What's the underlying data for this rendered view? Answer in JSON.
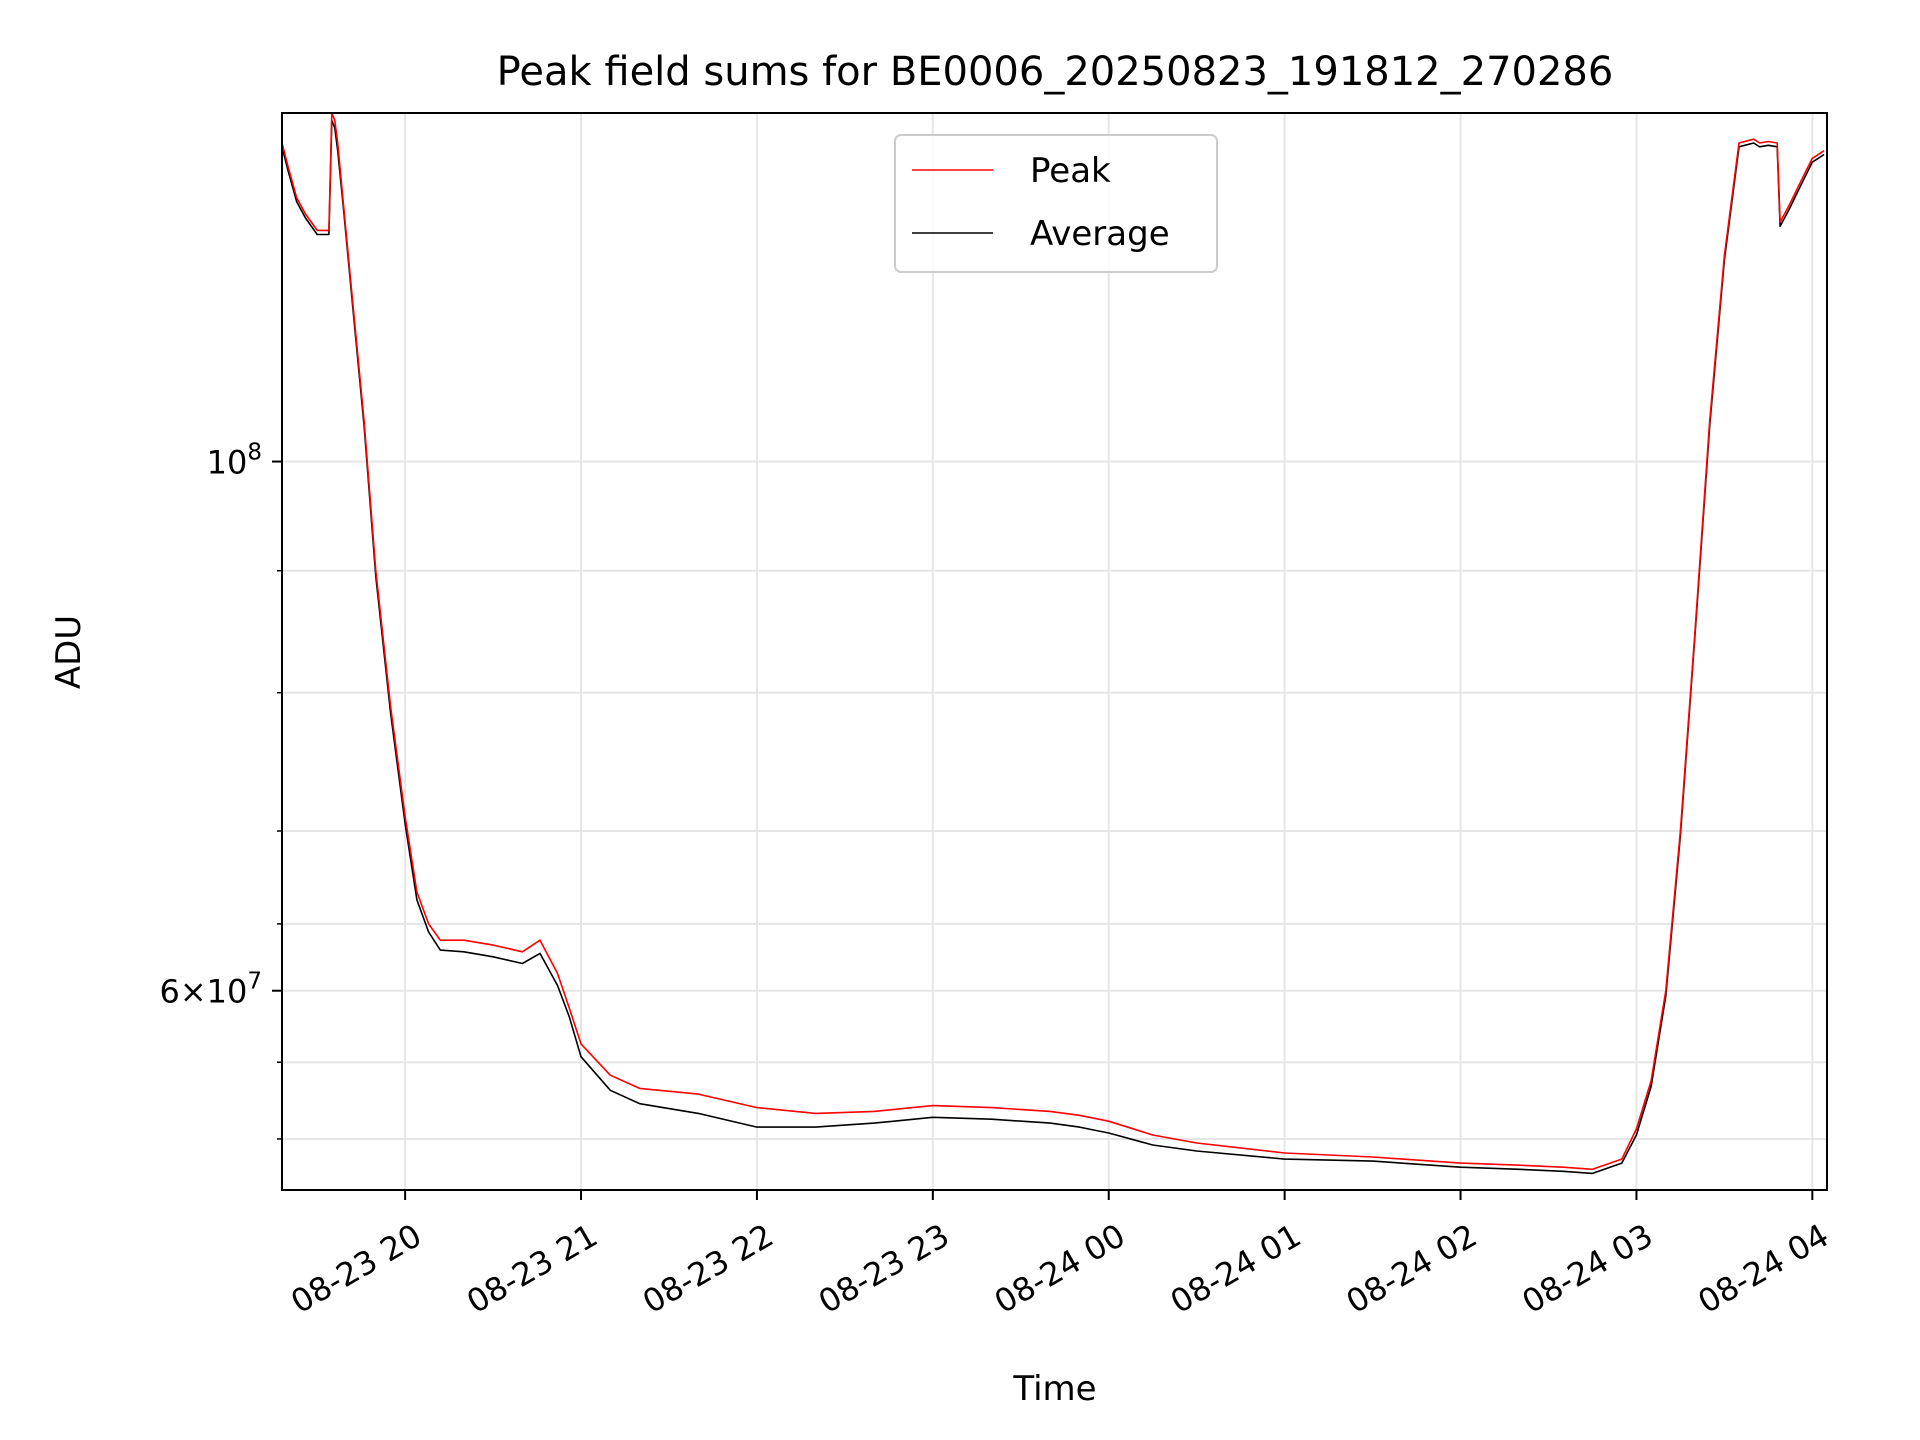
{
  "chart_data": {
    "type": "line",
    "title": "Peak field sums for BE0006_20250823_191812_270286",
    "xlabel": "Time",
    "ylabel": "ADU",
    "yscale": "log",
    "grid": true,
    "legend_position": "top-center",
    "xlim": [
      "2025-08-23 19:18",
      "2025-08-24 04:05"
    ],
    "ylim": [
      49500000,
      140000000
    ],
    "x_ticks": [
      {
        "t": "2025-08-23 20:00",
        "label": "08-23 20"
      },
      {
        "t": "2025-08-23 21:00",
        "label": "08-23 21"
      },
      {
        "t": "2025-08-23 22:00",
        "label": "08-23 22"
      },
      {
        "t": "2025-08-23 23:00",
        "label": "08-23 23"
      },
      {
        "t": "2025-08-24 00:00",
        "label": "08-24 00"
      },
      {
        "t": "2025-08-24 01:00",
        "label": "08-24 01"
      },
      {
        "t": "2025-08-24 02:00",
        "label": "08-24 02"
      },
      {
        "t": "2025-08-24 03:00",
        "label": "08-24 03"
      },
      {
        "t": "2025-08-24 04:00",
        "label": "08-24 04"
      }
    ],
    "y_major_ticks": [
      {
        "v": 100000000,
        "base": "10",
        "exp": "8",
        "mant": ""
      },
      {
        "v": 60000000,
        "base": "10",
        "exp": "7",
        "mant": "6×"
      }
    ],
    "y_minor_ticks": [
      52000000,
      56000000,
      60000000,
      64000000,
      70000000,
      80000000,
      90000000,
      100000000
    ],
    "series": [
      {
        "name": "Peak",
        "color": "#ff0000",
        "x": [
          "2025-08-23 19:18",
          "2025-08-23 19:20",
          "2025-08-23 19:23",
          "2025-08-23 19:26",
          "2025-08-23 19:30",
          "2025-08-23 19:34",
          "2025-08-23 19:35",
          "2025-08-23 19:36",
          "2025-08-23 19:37",
          "2025-08-23 19:39",
          "2025-08-23 19:42",
          "2025-08-23 19:46",
          "2025-08-23 19:50",
          "2025-08-23 19:55",
          "2025-08-23 20:00",
          "2025-08-23 20:04",
          "2025-08-23 20:08",
          "2025-08-23 20:12",
          "2025-08-23 20:20",
          "2025-08-23 20:30",
          "2025-08-23 20:40",
          "2025-08-23 20:46",
          "2025-08-23 20:52",
          "2025-08-23 20:56",
          "2025-08-23 21:00",
          "2025-08-23 21:10",
          "2025-08-23 21:20",
          "2025-08-23 21:40",
          "2025-08-23 22:00",
          "2025-08-23 22:20",
          "2025-08-23 22:40",
          "2025-08-23 23:00",
          "2025-08-23 23:20",
          "2025-08-23 23:40",
          "2025-08-23 23:50",
          "2025-08-24 00:00",
          "2025-08-24 00:15",
          "2025-08-24 00:30",
          "2025-08-24 01:00",
          "2025-08-24 01:30",
          "2025-08-24 02:00",
          "2025-08-24 02:20",
          "2025-08-24 02:35",
          "2025-08-24 02:45",
          "2025-08-24 02:55",
          "2025-08-24 03:00",
          "2025-08-24 03:05",
          "2025-08-24 03:10",
          "2025-08-24 03:15",
          "2025-08-24 03:20",
          "2025-08-24 03:25",
          "2025-08-24 03:30",
          "2025-08-24 03:35",
          "2025-08-24 03:40",
          "2025-08-24 03:42",
          "2025-08-24 03:45",
          "2025-08-24 03:48",
          "2025-08-24 03:49",
          "2025-08-24 03:52",
          "2025-08-24 03:56",
          "2025-08-24 04:00",
          "2025-08-24 04:04"
        ],
        "y": [
          136000000,
          133000000,
          129000000,
          127000000,
          125000000,
          125000000,
          140000000,
          139000000,
          136000000,
          128000000,
          117000000,
          104000000,
          90000000,
          79000000,
          71000000,
          66000000,
          64000000,
          63000000,
          63000000,
          62700000,
          62300000,
          63000000,
          61000000,
          59000000,
          57000000,
          55300000,
          54600000,
          54300000,
          53600000,
          53300000,
          53400000,
          53700000,
          53600000,
          53400000,
          53200000,
          52900000,
          52200000,
          51800000,
          51300000,
          51100000,
          50800000,
          50700000,
          50600000,
          50500000,
          51000000,
          52500000,
          55000000,
          60000000,
          70000000,
          85000000,
          104000000,
          122000000,
          136000000,
          136500000,
          136000000,
          136200000,
          136000000,
          126000000,
          128000000,
          131000000,
          134000000,
          135000000
        ]
      },
      {
        "name": "Average",
        "color": "#000000",
        "x": [
          "2025-08-23 19:18",
          "2025-08-23 19:20",
          "2025-08-23 19:23",
          "2025-08-23 19:26",
          "2025-08-23 19:30",
          "2025-08-23 19:34",
          "2025-08-23 19:35",
          "2025-08-23 19:36",
          "2025-08-23 19:37",
          "2025-08-23 19:39",
          "2025-08-23 19:42",
          "2025-08-23 19:46",
          "2025-08-23 19:50",
          "2025-08-23 19:55",
          "2025-08-23 20:00",
          "2025-08-23 20:04",
          "2025-08-23 20:08",
          "2025-08-23 20:12",
          "2025-08-23 20:20",
          "2025-08-23 20:30",
          "2025-08-23 20:40",
          "2025-08-23 20:46",
          "2025-08-23 20:52",
          "2025-08-23 20:56",
          "2025-08-23 21:00",
          "2025-08-23 21:10",
          "2025-08-23 21:20",
          "2025-08-23 21:40",
          "2025-08-23 22:00",
          "2025-08-23 22:20",
          "2025-08-23 22:40",
          "2025-08-23 23:00",
          "2025-08-23 23:20",
          "2025-08-23 23:40",
          "2025-08-23 23:50",
          "2025-08-24 00:00",
          "2025-08-24 00:15",
          "2025-08-24 00:30",
          "2025-08-24 01:00",
          "2025-08-24 01:30",
          "2025-08-24 02:00",
          "2025-08-24 02:20",
          "2025-08-24 02:35",
          "2025-08-24 02:45",
          "2025-08-24 02:55",
          "2025-08-24 03:00",
          "2025-08-24 03:05",
          "2025-08-24 03:10",
          "2025-08-24 03:15",
          "2025-08-24 03:20",
          "2025-08-24 03:25",
          "2025-08-24 03:30",
          "2025-08-24 03:35",
          "2025-08-24 03:40",
          "2025-08-24 03:42",
          "2025-08-24 03:45",
          "2025-08-24 03:48",
          "2025-08-24 03:49",
          "2025-08-24 03:52",
          "2025-08-24 03:56",
          "2025-08-24 04:00",
          "2025-08-24 04:04"
        ],
        "y": [
          135500000,
          132500000,
          128500000,
          126500000,
          124500000,
          124500000,
          139000000,
          138000000,
          135000000,
          127500000,
          116500000,
          103500000,
          89500000,
          78500000,
          70500000,
          65500000,
          63500000,
          62400000,
          62300000,
          62000000,
          61600000,
          62200000,
          60300000,
          58500000,
          56300000,
          54500000,
          53800000,
          53300000,
          52600000,
          52600000,
          52800000,
          53100000,
          53000000,
          52800000,
          52600000,
          52300000,
          51700000,
          51400000,
          51000000,
          50900000,
          50600000,
          50500000,
          50400000,
          50300000,
          50800000,
          52200000,
          54700000,
          59700000,
          69700000,
          84700000,
          103500000,
          121500000,
          135500000,
          136000000,
          135500000,
          135700000,
          135500000,
          125500000,
          127500000,
          130500000,
          133500000,
          134500000
        ]
      }
    ]
  }
}
